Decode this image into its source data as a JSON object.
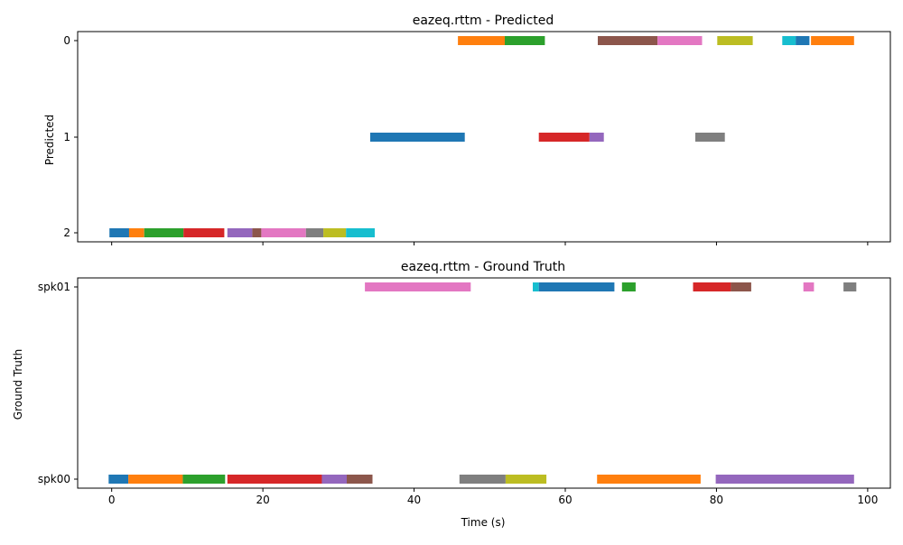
{
  "chart_data": [
    {
      "type": "timeline",
      "title": "eazeq.rttm - Predicted",
      "ylabel": "Predicted",
      "xlabel": "",
      "xlim": [
        -4.5,
        103
      ],
      "x_ticks": [
        0,
        20,
        40,
        60,
        80,
        100
      ],
      "show_x_tick_labels": false,
      "y_categories": [
        "0",
        "1",
        "2"
      ],
      "segments": [
        {
          "speaker": "2",
          "start": -0.3,
          "end": 2.3,
          "color": "#1f77b4"
        },
        {
          "speaker": "2",
          "start": 2.3,
          "end": 4.3,
          "color": "#ff7f0e"
        },
        {
          "speaker": "2",
          "start": 4.3,
          "end": 9.5,
          "color": "#2ca02c"
        },
        {
          "speaker": "2",
          "start": 9.5,
          "end": 14.9,
          "color": "#d62728"
        },
        {
          "speaker": "2",
          "start": 15.3,
          "end": 18.6,
          "color": "#9467bd"
        },
        {
          "speaker": "2",
          "start": 18.6,
          "end": 19.8,
          "color": "#8c564b"
        },
        {
          "speaker": "2",
          "start": 19.8,
          "end": 25.7,
          "color": "#e377c2"
        },
        {
          "speaker": "2",
          "start": 25.7,
          "end": 28.0,
          "color": "#7f7f7f"
        },
        {
          "speaker": "2",
          "start": 28.0,
          "end": 31.0,
          "color": "#bcbd22"
        },
        {
          "speaker": "2",
          "start": 31.0,
          "end": 34.8,
          "color": "#17becf"
        },
        {
          "speaker": "1",
          "start": 34.2,
          "end": 46.7,
          "color": "#1f77b4"
        },
        {
          "speaker": "0",
          "start": 45.8,
          "end": 52.0,
          "color": "#ff7f0e"
        },
        {
          "speaker": "0",
          "start": 52.0,
          "end": 57.3,
          "color": "#2ca02c"
        },
        {
          "speaker": "1",
          "start": 56.5,
          "end": 63.2,
          "color": "#d62728"
        },
        {
          "speaker": "1",
          "start": 63.2,
          "end": 65.1,
          "color": "#9467bd"
        },
        {
          "speaker": "0",
          "start": 64.3,
          "end": 72.2,
          "color": "#8c564b"
        },
        {
          "speaker": "0",
          "start": 72.2,
          "end": 78.1,
          "color": "#e377c2"
        },
        {
          "speaker": "1",
          "start": 77.2,
          "end": 81.1,
          "color": "#7f7f7f"
        },
        {
          "speaker": "0",
          "start": 80.1,
          "end": 84.8,
          "color": "#bcbd22"
        },
        {
          "speaker": "0",
          "start": 88.7,
          "end": 90.5,
          "color": "#17becf"
        },
        {
          "speaker": "0",
          "start": 90.5,
          "end": 92.3,
          "color": "#1f77b4"
        },
        {
          "speaker": "0",
          "start": 92.5,
          "end": 98.2,
          "color": "#ff7f0e"
        }
      ]
    },
    {
      "type": "timeline",
      "title": "eazeq.rttm - Ground Truth",
      "ylabel": "Ground Truth",
      "xlabel": "Time (s)",
      "xlim": [
        -4.5,
        103
      ],
      "x_ticks": [
        0,
        20,
        40,
        60,
        80,
        100
      ],
      "show_x_tick_labels": true,
      "y_categories": [
        "spk01",
        "spk00"
      ],
      "segments": [
        {
          "speaker": "spk00",
          "start": -0.4,
          "end": 2.2,
          "color": "#1f77b4"
        },
        {
          "speaker": "spk00",
          "start": 2.2,
          "end": 9.4,
          "color": "#ff7f0e"
        },
        {
          "speaker": "spk00",
          "start": 9.4,
          "end": 15.0,
          "color": "#2ca02c"
        },
        {
          "speaker": "spk00",
          "start": 15.3,
          "end": 27.8,
          "color": "#d62728"
        },
        {
          "speaker": "spk00",
          "start": 27.8,
          "end": 31.1,
          "color": "#9467bd"
        },
        {
          "speaker": "spk00",
          "start": 31.1,
          "end": 34.5,
          "color": "#8c564b"
        },
        {
          "speaker": "spk01",
          "start": 33.5,
          "end": 47.5,
          "color": "#e377c2"
        },
        {
          "speaker": "spk00",
          "start": 46.0,
          "end": 52.1,
          "color": "#7f7f7f"
        },
        {
          "speaker": "spk00",
          "start": 52.1,
          "end": 57.5,
          "color": "#bcbd22"
        },
        {
          "speaker": "spk01",
          "start": 55.7,
          "end": 56.5,
          "color": "#17becf"
        },
        {
          "speaker": "spk01",
          "start": 56.5,
          "end": 66.5,
          "color": "#1f77b4"
        },
        {
          "speaker": "spk00",
          "start": 64.2,
          "end": 77.9,
          "color": "#ff7f0e"
        },
        {
          "speaker": "spk01",
          "start": 67.5,
          "end": 69.3,
          "color": "#2ca02c"
        },
        {
          "speaker": "spk01",
          "start": 76.9,
          "end": 81.9,
          "color": "#d62728"
        },
        {
          "speaker": "spk01",
          "start": 81.9,
          "end": 84.6,
          "color": "#8c564b"
        },
        {
          "speaker": "spk00",
          "start": 79.9,
          "end": 98.2,
          "color": "#9467bd"
        },
        {
          "speaker": "spk01",
          "start": 91.5,
          "end": 92.9,
          "color": "#e377c2"
        },
        {
          "speaker": "spk01",
          "start": 96.8,
          "end": 98.5,
          "color": "#7f7f7f"
        }
      ]
    }
  ]
}
